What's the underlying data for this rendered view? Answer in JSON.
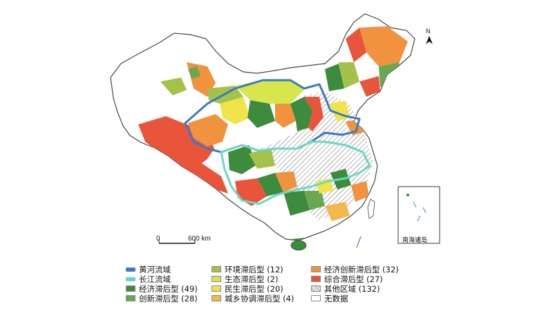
{
  "map": {
    "north_label": "N",
    "scale_start": "0",
    "scale_end": "600 km",
    "inset_label": "南海诸岛"
  },
  "legend": {
    "col1": [
      {
        "label": "黄河流域",
        "kind": "line",
        "color": "#3b78c7"
      },
      {
        "label": "长江流域",
        "kind": "line",
        "color": "#6ad7c3"
      },
      {
        "label": "经济滞后型 (49)",
        "kind": "fill",
        "color": "#3d8b3d"
      },
      {
        "label": "创新滞后型 (28)",
        "kind": "fill",
        "color": "#6aa84f"
      }
    ],
    "col2": [
      {
        "label": "环境滞后型 (12)",
        "kind": "fill",
        "color": "#a4c24a"
      },
      {
        "label": "生态滞后型 (2)",
        "kind": "fill",
        "color": "#d6e64c"
      },
      {
        "label": "民生滞后型 (20)",
        "kind": "fill",
        "color": "#f0e44a"
      },
      {
        "label": "城乡协调滞后型 (4)",
        "kind": "fill",
        "color": "#f2b84b"
      }
    ],
    "col3": [
      {
        "label": "经济创新滞后型 (32)",
        "kind": "fill",
        "color": "#f0923e"
      },
      {
        "label": "综合滞后型 (27)",
        "kind": "fill",
        "color": "#e8553b"
      },
      {
        "label": "其他区域 (132)",
        "kind": "hatch",
        "color": "#ffffff"
      },
      {
        "label": "无数据",
        "kind": "fill",
        "color": "#ffffff"
      }
    ]
  },
  "colors": {
    "economic": "#3d8b3d",
    "innovation": "#6aa84f",
    "environment": "#a4c24a",
    "ecology": "#d6e64c",
    "livelihood": "#f0e44a",
    "urban_rural": "#f2b84b",
    "econ_innov": "#f0923e",
    "comprehensive": "#e8553b",
    "yellow_river": "#3b78c7",
    "yangtze": "#6ad7c3"
  }
}
